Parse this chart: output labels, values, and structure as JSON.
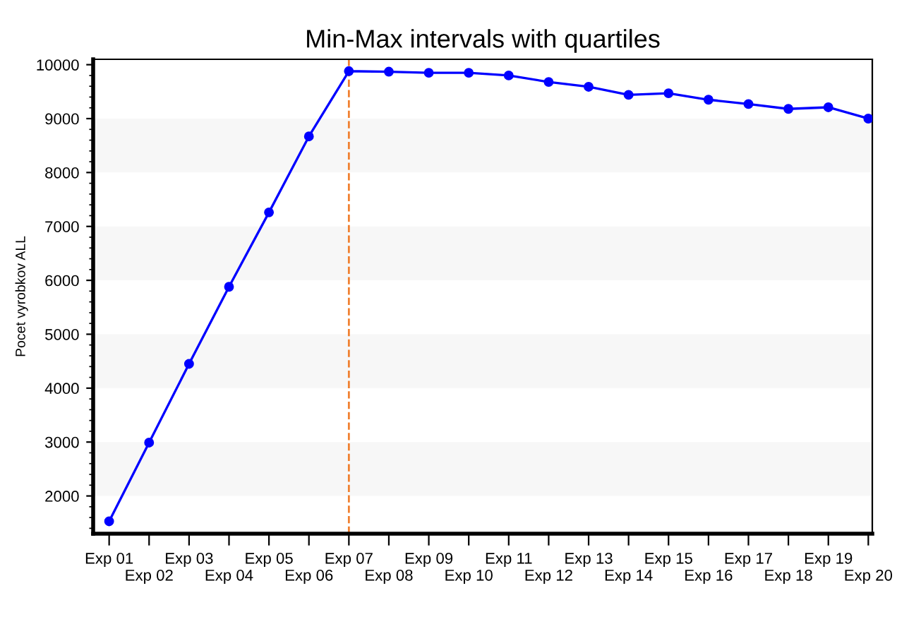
{
  "chart_data": {
    "type": "line",
    "title": "Min-Max intervals with quartiles",
    "ylabel": "Pocet vyrobkov ALL",
    "categories": [
      "Exp 01",
      "Exp 02",
      "Exp 03",
      "Exp 04",
      "Exp 05",
      "Exp 06",
      "Exp 07",
      "Exp 08",
      "Exp 09",
      "Exp 10",
      "Exp 11",
      "Exp 12",
      "Exp 13",
      "Exp 14",
      "Exp 15",
      "Exp 16",
      "Exp 17",
      "Exp 18",
      "Exp 19",
      "Exp 20"
    ],
    "series": [
      {
        "color": "#0000ff",
        "values": [
          1530,
          2990,
          4450,
          5880,
          7260,
          8670,
          9880,
          9870,
          9850,
          9850,
          9800,
          9680,
          9590,
          9440,
          9470,
          9350,
          9270,
          9180,
          9210,
          9000
        ]
      }
    ],
    "ylim": [
      1300,
      10100
    ],
    "yticks": [
      2000,
      3000,
      4000,
      5000,
      6000,
      7000,
      8000,
      9000,
      10000
    ],
    "ref_lines": [
      {
        "axis": "x",
        "value": "Exp 07",
        "color": "#f08030",
        "line_style": "dashed"
      }
    ],
    "bands": [
      {
        "axis": "y",
        "from": 2000,
        "to": 3000,
        "color": "#f7f7f7"
      },
      {
        "axis": "y",
        "from": 4000,
        "to": 5000,
        "color": "#f7f7f7"
      },
      {
        "axis": "y",
        "from": 6000,
        "to": 7000,
        "color": "#f7f7f7"
      },
      {
        "axis": "y",
        "from": 8000,
        "to": 9000,
        "color": "#f7f7f7"
      }
    ],
    "marker": "circle",
    "line_style": "solid",
    "legend": false
  }
}
